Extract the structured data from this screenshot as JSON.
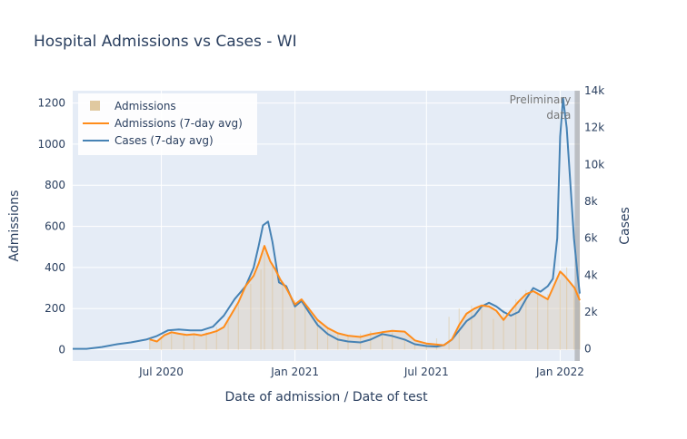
{
  "chart_data": {
    "type": "line",
    "title": "Hospital Admissions vs Cases - WI",
    "xlabel": "Date of admission / Date of test",
    "ylabel": "Admissions",
    "y2label": "Cases",
    "xrange": [
      "2020-03-01",
      "2022-01-28"
    ],
    "ylim": [
      -55,
      1260
    ],
    "y2lim": [
      -660,
      14000
    ],
    "x_ticks": [
      {
        "date": "2020-07-01",
        "label": "Jul 2020"
      },
      {
        "date": "2021-01-01",
        "label": "Jan 2021"
      },
      {
        "date": "2021-07-01",
        "label": "Jul 2021"
      },
      {
        "date": "2022-01-01",
        "label": "Jan 2022"
      }
    ],
    "y_ticks": [
      {
        "value": 0,
        "label": "0"
      },
      {
        "value": 200,
        "label": "200"
      },
      {
        "value": 400,
        "label": "400"
      },
      {
        "value": 600,
        "label": "600"
      },
      {
        "value": 800,
        "label": "800"
      },
      {
        "value": 1000,
        "label": "1000"
      },
      {
        "value": 1200,
        "label": "1200"
      }
    ],
    "y2_ticks": [
      {
        "value": 0,
        "label": "0"
      },
      {
        "value": 2000,
        "label": "2k"
      },
      {
        "value": 4000,
        "label": "4k"
      },
      {
        "value": 6000,
        "label": "6k"
      },
      {
        "value": 8000,
        "label": "8k"
      },
      {
        "value": 10000,
        "label": "10k"
      },
      {
        "value": 12000,
        "label": "12k"
      },
      {
        "value": 14000,
        "label": "14k"
      }
    ],
    "legend": {
      "placement": "top-left",
      "items": [
        "Admissions",
        "Admissions (7-day avg)",
        "Cases (7-day avg)"
      ]
    },
    "preliminary": {
      "start": "2022-01-21",
      "end": "2022-01-28",
      "label_line1": "Preliminary",
      "label_line2": "data"
    },
    "colors": {
      "admissions_bar": "#ddc396",
      "admissions_avg": "#ff8c1a",
      "cases_avg": "#4682b4",
      "plot_bg": "#e5ecf6",
      "grid": "#ffffff",
      "preliminary_band": "#999999"
    },
    "series": [
      {
        "name": "Admissions",
        "axis": "left",
        "type": "bar",
        "x": [
          "2020-06-15",
          "2020-07-01",
          "2020-07-15",
          "2020-08-01",
          "2020-08-15",
          "2020-09-01",
          "2020-09-15",
          "2020-10-01",
          "2020-10-15",
          "2020-11-01",
          "2020-11-15",
          "2020-11-20",
          "2020-12-01",
          "2020-12-15",
          "2021-01-01",
          "2021-01-15",
          "2021-02-01",
          "2021-02-15",
          "2021-03-01",
          "2021-03-15",
          "2021-04-01",
          "2021-04-15",
          "2021-05-01",
          "2021-05-15",
          "2021-06-01",
          "2021-06-15",
          "2021-07-01",
          "2021-07-15",
          "2021-08-01",
          "2021-08-15",
          "2021-09-01",
          "2021-09-15",
          "2021-10-01",
          "2021-10-15",
          "2021-11-01",
          "2021-11-15",
          "2021-12-01",
          "2021-12-15",
          "2022-01-01",
          "2022-01-10",
          "2022-01-20",
          "2022-01-28"
        ],
        "values": [
          50,
          65,
          80,
          78,
          70,
          85,
          110,
          160,
          220,
          320,
          390,
          470,
          420,
          330,
          240,
          215,
          150,
          105,
          80,
          70,
          78,
          90,
          90,
          85,
          45,
          30,
          25,
          55,
          160,
          200,
          215,
          200,
          150,
          195,
          245,
          290,
          280,
          270,
          340,
          400,
          300,
          230
        ]
      },
      {
        "name": "Admissions (7-day avg)",
        "axis": "left",
        "x": [
          "2020-06-15",
          "2020-06-25",
          "2020-07-05",
          "2020-07-15",
          "2020-07-25",
          "2020-08-05",
          "2020-08-15",
          "2020-08-25",
          "2020-09-05",
          "2020-09-15",
          "2020-09-25",
          "2020-10-05",
          "2020-10-15",
          "2020-10-25",
          "2020-11-05",
          "2020-11-12",
          "2020-11-20",
          "2020-11-28",
          "2020-12-05",
          "2020-12-12",
          "2020-12-20",
          "2021-01-01",
          "2021-01-10",
          "2021-01-20",
          "2021-02-01",
          "2021-02-15",
          "2021-03-01",
          "2021-03-15",
          "2021-04-01",
          "2021-04-15",
          "2021-05-01",
          "2021-05-15",
          "2021-06-01",
          "2021-06-15",
          "2021-07-01",
          "2021-07-15",
          "2021-07-25",
          "2021-08-05",
          "2021-08-15",
          "2021-08-25",
          "2021-09-05",
          "2021-09-15",
          "2021-09-25",
          "2021-10-05",
          "2021-10-15",
          "2021-10-25",
          "2021-11-05",
          "2021-11-15",
          "2021-11-25",
          "2021-12-05",
          "2021-12-15",
          "2021-12-22",
          "2022-01-01",
          "2022-01-07",
          "2022-01-14",
          "2022-01-21",
          "2022-01-28"
        ],
        "values": [
          50,
          40,
          70,
          85,
          78,
          72,
          75,
          70,
          80,
          90,
          110,
          170,
          230,
          310,
          360,
          420,
          505,
          430,
          390,
          340,
          300,
          220,
          245,
          200,
          145,
          105,
          80,
          68,
          62,
          75,
          85,
          92,
          88,
          45,
          30,
          25,
          22,
          50,
          120,
          175,
          200,
          215,
          210,
          190,
          145,
          190,
          235,
          270,
          285,
          265,
          245,
          300,
          380,
          360,
          330,
          300,
          240
        ]
      },
      {
        "name": "Cases (7-day avg)",
        "axis": "right",
        "x": [
          "2020-03-01",
          "2020-03-20",
          "2020-04-10",
          "2020-05-01",
          "2020-05-20",
          "2020-06-10",
          "2020-06-25",
          "2020-07-10",
          "2020-07-25",
          "2020-08-10",
          "2020-08-25",
          "2020-09-10",
          "2020-09-25",
          "2020-10-10",
          "2020-10-25",
          "2020-11-05",
          "2020-11-12",
          "2020-11-18",
          "2020-11-25",
          "2020-12-01",
          "2020-12-10",
          "2020-12-20",
          "2021-01-01",
          "2021-01-10",
          "2021-01-20",
          "2021-02-01",
          "2021-02-15",
          "2021-03-01",
          "2021-03-15",
          "2021-04-01",
          "2021-04-15",
          "2021-05-01",
          "2021-05-15",
          "2021-06-01",
          "2021-06-15",
          "2021-07-01",
          "2021-07-15",
          "2021-07-25",
          "2021-08-05",
          "2021-08-15",
          "2021-08-25",
          "2021-09-05",
          "2021-09-15",
          "2021-09-25",
          "2021-10-05",
          "2021-10-15",
          "2021-10-25",
          "2021-11-05",
          "2021-11-15",
          "2021-11-25",
          "2021-12-05",
          "2021-12-15",
          "2021-12-22",
          "2021-12-28",
          "2022-01-01",
          "2022-01-05",
          "2022-01-10",
          "2022-01-15",
          "2022-01-20",
          "2022-01-25",
          "2022-01-28"
        ],
        "values": [
          0,
          0,
          100,
          250,
          350,
          500,
          700,
          1000,
          1050,
          1000,
          1000,
          1200,
          1800,
          2700,
          3400,
          4400,
          5600,
          6700,
          6900,
          5800,
          3600,
          3400,
          2300,
          2600,
          2000,
          1300,
          800,
          500,
          400,
          350,
          500,
          800,
          700,
          500,
          250,
          150,
          120,
          200,
          500,
          1000,
          1500,
          1800,
          2300,
          2500,
          2300,
          2000,
          1800,
          2000,
          2700,
          3300,
          3100,
          3400,
          3800,
          6000,
          11500,
          13600,
          12000,
          9000,
          6000,
          4000,
          3000
        ]
      }
    ]
  }
}
